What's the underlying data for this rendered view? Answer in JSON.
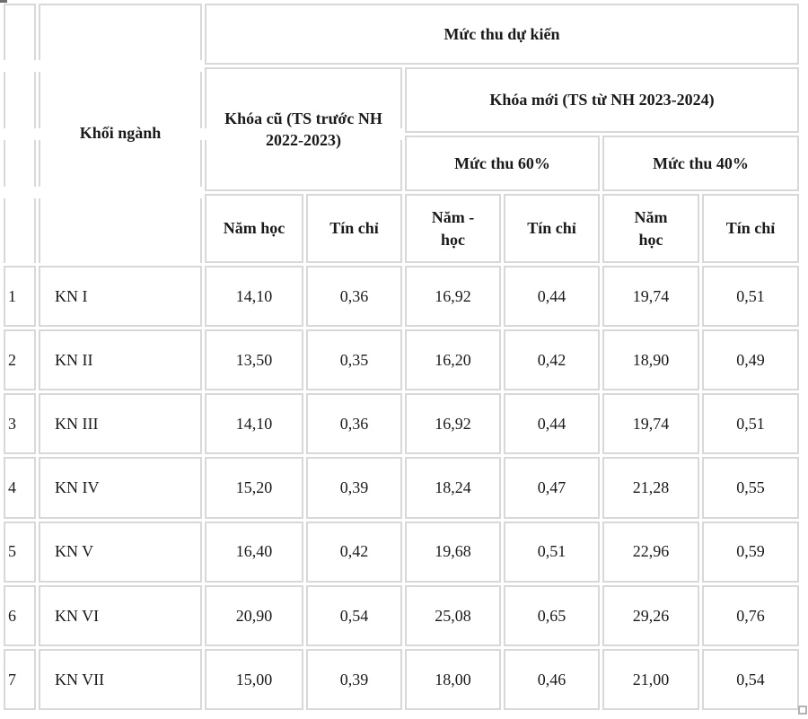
{
  "colors": {
    "cell_border": "#d8d8d8",
    "text": "#1a1a1a",
    "background": "#ffffff"
  },
  "table": {
    "header": {
      "khoi_nganh": "Khối ngành",
      "muc_thu_du_kien": "Mức thu dự kiến",
      "khoa_cu": "Khóa cũ (TS trước NH\n2022-2023)",
      "khoa_moi": "Khóa mới (TS từ NH 2023-2024)",
      "muc_thu_60": "Mức thu 60%",
      "muc_thu_40": "Mức thu 40%",
      "sub_columns": [
        "Năm học",
        "Tín chỉ",
        "Năm -\nhọc",
        "Tín chỉ",
        "Năm\nhọc",
        "Tín chỉ"
      ]
    },
    "rows": [
      {
        "no": "1",
        "group": "KN I",
        "old_year": "14,10",
        "old_credit": "0,36",
        "p60_year": "16,92",
        "p60_credit": "0,44",
        "p40_year": "19,74",
        "p40_credit": "0,51"
      },
      {
        "no": "2",
        "group": "KN II",
        "old_year": "13,50",
        "old_credit": "0,35",
        "p60_year": "16,20",
        "p60_credit": "0,42",
        "p40_year": "18,90",
        "p40_credit": "0,49"
      },
      {
        "no": "3",
        "group": "KN III",
        "old_year": "14,10",
        "old_credit": "0,36",
        "p60_year": "16,92",
        "p60_credit": "0,44",
        "p40_year": "19,74",
        "p40_credit": "0,51"
      },
      {
        "no": "4",
        "group": "KN IV",
        "old_year": "15,20",
        "old_credit": "0,39",
        "p60_year": "18,24",
        "p60_credit": "0,47",
        "p40_year": "21,28",
        "p40_credit": "0,55"
      },
      {
        "no": "5",
        "group": "KN V",
        "old_year": "16,40",
        "old_credit": "0,42",
        "p60_year": "19,68",
        "p60_credit": "0,51",
        "p40_year": "22,96",
        "p40_credit": "0,59"
      },
      {
        "no": "6",
        "group": "KN VI",
        "old_year": "20,90",
        "old_credit": "0,54",
        "p60_year": "25,08",
        "p60_credit": "0,65",
        "p40_year": "29,26",
        "p40_credit": "0,76"
      },
      {
        "no": "7",
        "group": "KN VII",
        "old_year": "15,00",
        "old_credit": "0,39",
        "p60_year": "18,00",
        "p60_credit": "0,46",
        "p40_year": "21,00",
        "p40_credit": "0,54"
      }
    ]
  }
}
